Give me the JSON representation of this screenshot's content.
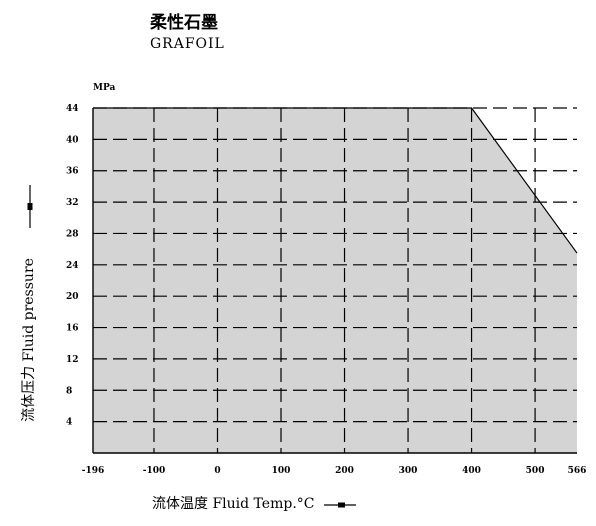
{
  "chart_data": {
    "type": "area",
    "title": "柔性石墨",
    "subtitle": "GRAFOIL",
    "unit_label": "MPa",
    "xlabel": "流体温度 Fluid Temp.°C",
    "ylabel": "流体压力 Fluid pressure",
    "xlim": [
      -196,
      566
    ],
    "ylim": [
      0,
      44
    ],
    "x_ticks": [
      -196,
      -100,
      0,
      100,
      200,
      300,
      400,
      500,
      566
    ],
    "x_tick_labels": [
      "-196",
      "-100",
      "0",
      "100",
      "200",
      "300",
      "400",
      "500",
      "566"
    ],
    "y_ticks": [
      4,
      8,
      12,
      16,
      20,
      24,
      28,
      32,
      36,
      40,
      44
    ],
    "y_tick_labels": [
      "4",
      "8",
      "12",
      "16",
      "20",
      "24",
      "28",
      "32",
      "36",
      "40",
      "44"
    ],
    "grid": true,
    "series": [
      {
        "x": [
          -196,
          400,
          566
        ],
        "y": [
          44,
          44,
          25.5
        ]
      }
    ],
    "fill_color": "#d4d4d4",
    "line_color": "#000000"
  }
}
